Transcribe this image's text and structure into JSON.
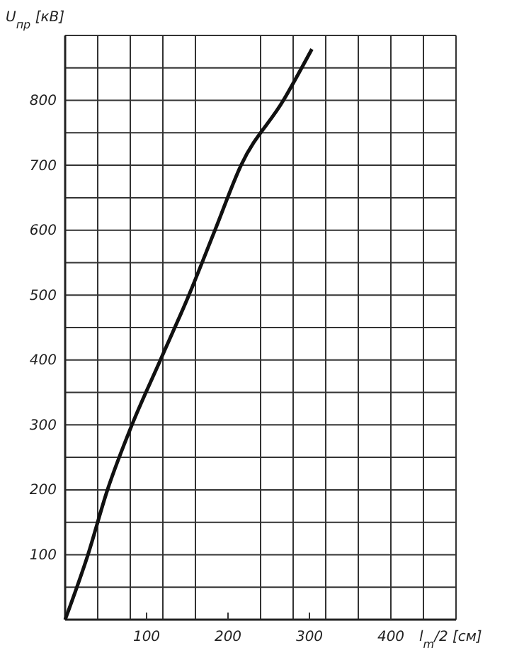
{
  "chart_data": {
    "type": "line",
    "xlabel": "l$_{m}$/2 [см]",
    "ylabel": "U$_{пр}$ [кВ]",
    "xlim": [
      0,
      480
    ],
    "ylim": [
      0,
      900
    ],
    "xticks": [
      {
        "value": 40,
        "label": null
      },
      {
        "value": 80,
        "label": null
      },
      100,
      {
        "value": 120,
        "label": null
      },
      {
        "value": 160,
        "label": null
      },
      200,
      {
        "value": 240,
        "label": null
      },
      {
        "value": 280,
        "label": null
      },
      300,
      {
        "value": 320,
        "label": null
      },
      {
        "value": 360,
        "label": null
      },
      400,
      {
        "value": 400,
        "label": null
      },
      {
        "value": 440,
        "label": null
      },
      {
        "value": 480,
        "label": null
      }
    ],
    "yticks": [
      {
        "value": 50,
        "label": null
      },
      100,
      {
        "value": 150,
        "label": null
      },
      200,
      {
        "value": 250,
        "label": null
      },
      300,
      {
        "value": 350,
        "label": null
      },
      400,
      {
        "value": 450,
        "label": null
      },
      500,
      {
        "value": 550,
        "label": null
      },
      600,
      {
        "value": 650,
        "label": null
      },
      700,
      {
        "value": 750,
        "label": null
      },
      800,
      {
        "value": 850,
        "label": null
      },
      {
        "value": 900,
        "label": null
      }
    ],
    "grid": true,
    "marker": "none",
    "line_style": "solid",
    "series": [
      {
        "color": "#111111",
        "x": [
          0,
          28,
          52,
          82,
          117,
          152,
          184,
          216,
          268,
          303
        ],
        "values": [
          0,
          100,
          200,
          300,
          400,
          500,
          600,
          700,
          800,
          879
        ]
      }
    ]
  }
}
